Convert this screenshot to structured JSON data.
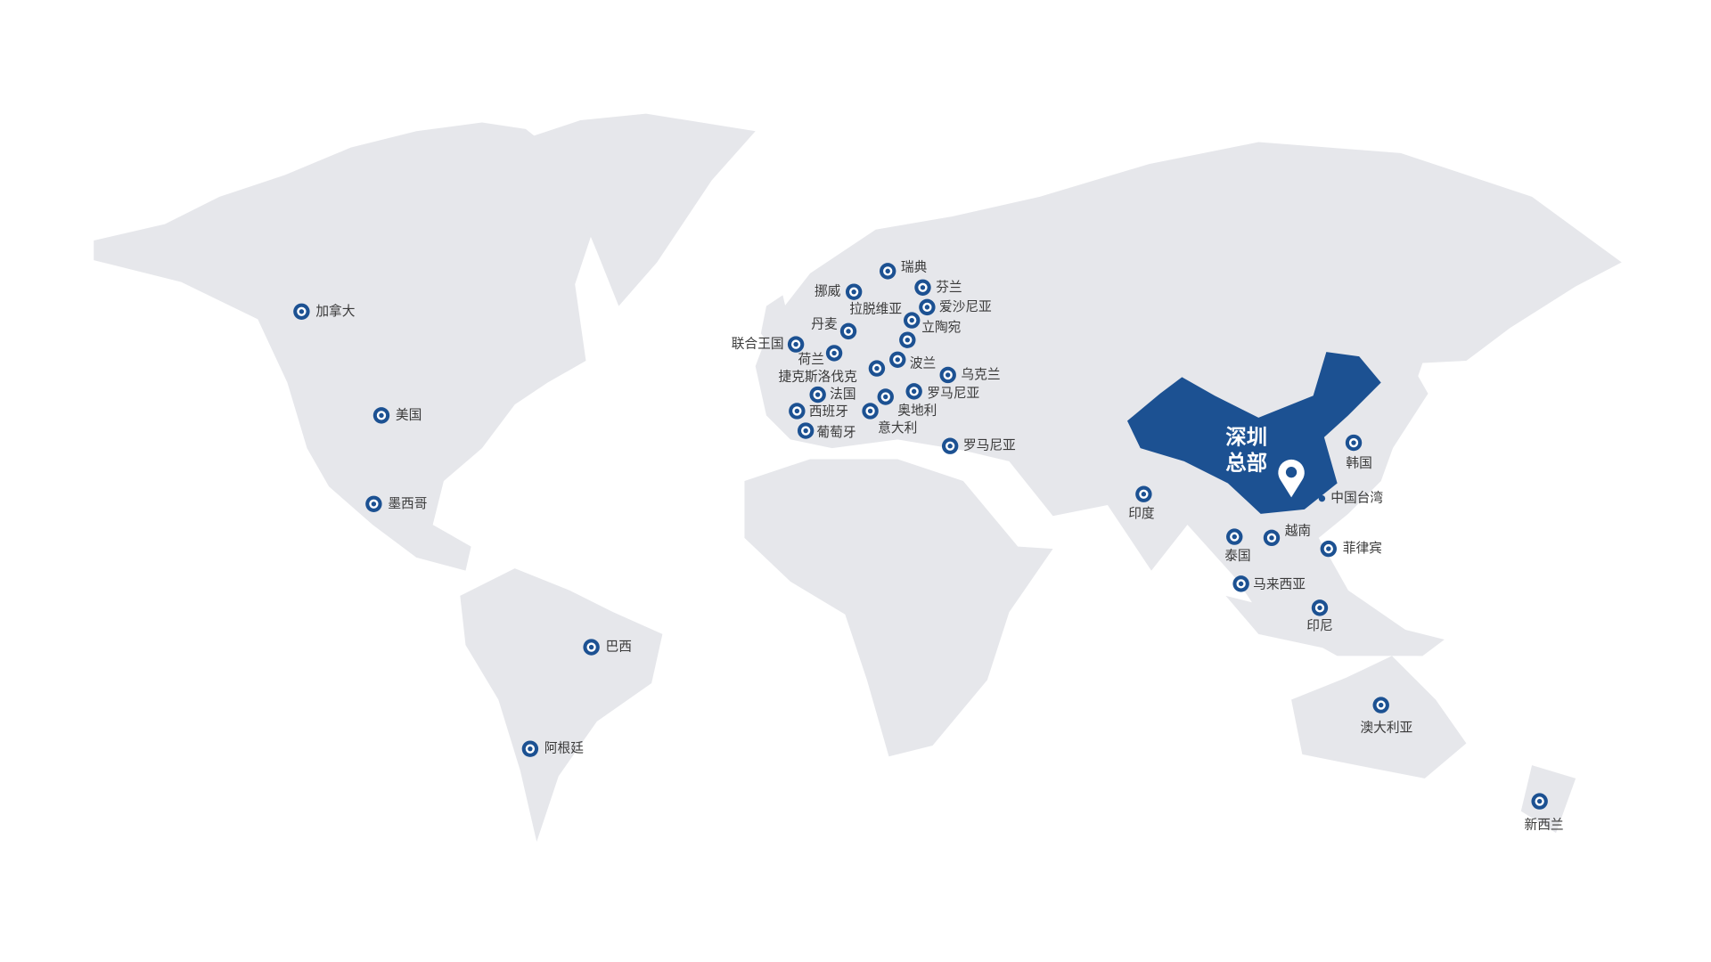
{
  "colors": {
    "land": "#e6e7eb",
    "highlight": "#1c5192",
    "marker": "#1c5192",
    "label": "#3a3a3a"
  },
  "headquarters": {
    "line1": "深圳",
    "line2": "总部",
    "icon": "map-pin-icon"
  },
  "locations": [
    "加拿大",
    "美国",
    "墨西哥",
    "巴西",
    "阿根廷",
    "瑞典",
    "挪威",
    "芬兰",
    "拉脱维亚",
    "爱沙尼亚",
    "立陶宛",
    "丹麦",
    "联合王国",
    "荷兰",
    "波兰",
    "捷克斯洛伐克",
    "乌克兰",
    "法国",
    "罗马尼亚",
    "奥地利",
    "西班牙",
    "意大利",
    "葡萄牙",
    "罗马尼亚",
    "印度",
    "韩国",
    "中国台湾",
    "越南",
    "泰国",
    "菲律宾",
    "马来西亚",
    "印尼",
    "澳大利亚",
    "新西兰"
  ]
}
